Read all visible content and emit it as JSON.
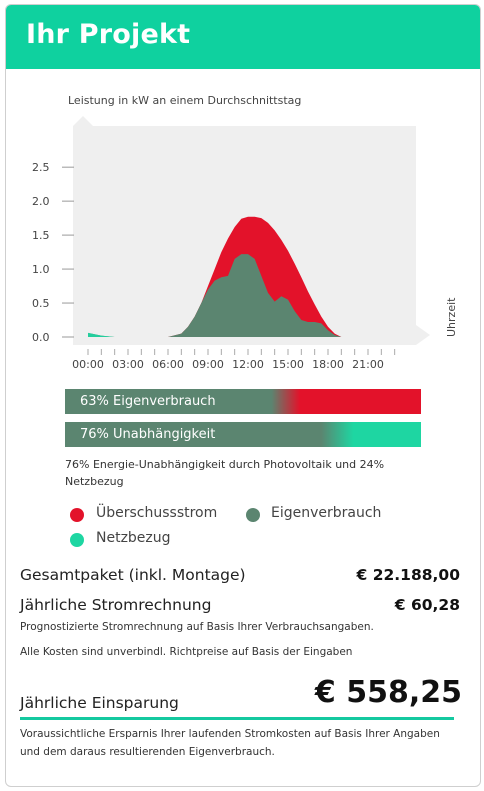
{
  "header": {
    "title": "Ihr Projekt"
  },
  "colors": {
    "accent": "#0fd19f",
    "surplus": "#e3122a",
    "self": "#5b8570",
    "grid": "#1ed6a2"
  },
  "chart_data": {
    "type": "area",
    "title": "Leistung in kW an einem Durchschnittstag",
    "xlabel": "Uhrzeit",
    "ylabel": "",
    "ylim": [
      0,
      2.9
    ],
    "yticks": [
      "0.0",
      "0.5",
      "1.0",
      "1.5",
      "2.0",
      "2.5"
    ],
    "xticks": [
      "00:00",
      "03:00",
      "06:00",
      "09:00",
      "12:00",
      "15:00",
      "18:00",
      "21:00"
    ],
    "x": [
      0,
      1,
      2,
      3,
      4,
      5,
      6,
      7,
      7.5,
      8,
      8.5,
      9,
      9.5,
      10,
      10.5,
      11,
      11.5,
      12,
      12.5,
      13,
      13.5,
      14,
      14.5,
      15,
      15.5,
      16,
      16.5,
      17,
      17.5,
      18,
      18.5,
      19,
      20,
      21,
      22,
      23,
      24
    ],
    "series": [
      {
        "name": "Überschussstrom",
        "values": [
          0,
          0,
          0,
          0,
          0,
          0,
          0,
          0.05,
          0.15,
          0.3,
          0.5,
          0.75,
          1.0,
          1.25,
          1.45,
          1.62,
          1.74,
          1.77,
          1.77,
          1.75,
          1.68,
          1.57,
          1.43,
          1.27,
          1.08,
          0.88,
          0.67,
          0.48,
          0.3,
          0.15,
          0.05,
          0,
          0,
          0,
          0,
          0,
          0
        ]
      },
      {
        "name": "Eigenverbrauch",
        "values": [
          0.06,
          0.02,
          0,
          0,
          0,
          0,
          0,
          0.05,
          0.15,
          0.3,
          0.5,
          0.7,
          0.83,
          0.88,
          0.9,
          1.15,
          1.22,
          1.22,
          1.15,
          0.9,
          0.65,
          0.52,
          0.6,
          0.55,
          0.38,
          0.25,
          0.22,
          0.22,
          0.2,
          0.1,
          0.03,
          0,
          0,
          0,
          0,
          0,
          0
        ]
      },
      {
        "name": "Netzbezug",
        "values": [
          0.06,
          0.02,
          0,
          0,
          0,
          0,
          0,
          0,
          0,
          0,
          0,
          0,
          0,
          0,
          0,
          0,
          0,
          0,
          0,
          0,
          0,
          0,
          0,
          0,
          0,
          0,
          0,
          0,
          0,
          0,
          0,
          0,
          0,
          0,
          0,
          0,
          0
        ]
      }
    ]
  },
  "bars": {
    "self_consumption": "63% Eigenverbrauch",
    "independence": "76% Unabhängigkeit"
  },
  "note": "76% Energie-Unabhängigkeit durch Photovoltaik und 24% Netzbezug",
  "legend": {
    "surplus": "Überschussstrom",
    "self": "Eigenverbrauch",
    "grid": "Netzbezug"
  },
  "costs": {
    "package_label": "Gesamtpaket (inkl. Montage)",
    "package_value": "€ 22.188,00",
    "bill_label": "Jährliche Stromrechnung",
    "bill_value": "€ 60,28",
    "bill_note": "Prognostizierte Stromrechnung auf Basis Ihrer Verbrauchsangaben.",
    "disclaimer": "Alle Kosten sind unverbindl. Richtpreise auf Basis der Eingaben",
    "savings_label": "Jährliche Einsparung",
    "savings_value": "€ 558,25",
    "savings_note": "Voraussichtliche Ersparnis Ihrer laufenden Stromkosten auf Basis Ihrer Angaben und dem daraus resultierenden Eigenverbrauch."
  }
}
